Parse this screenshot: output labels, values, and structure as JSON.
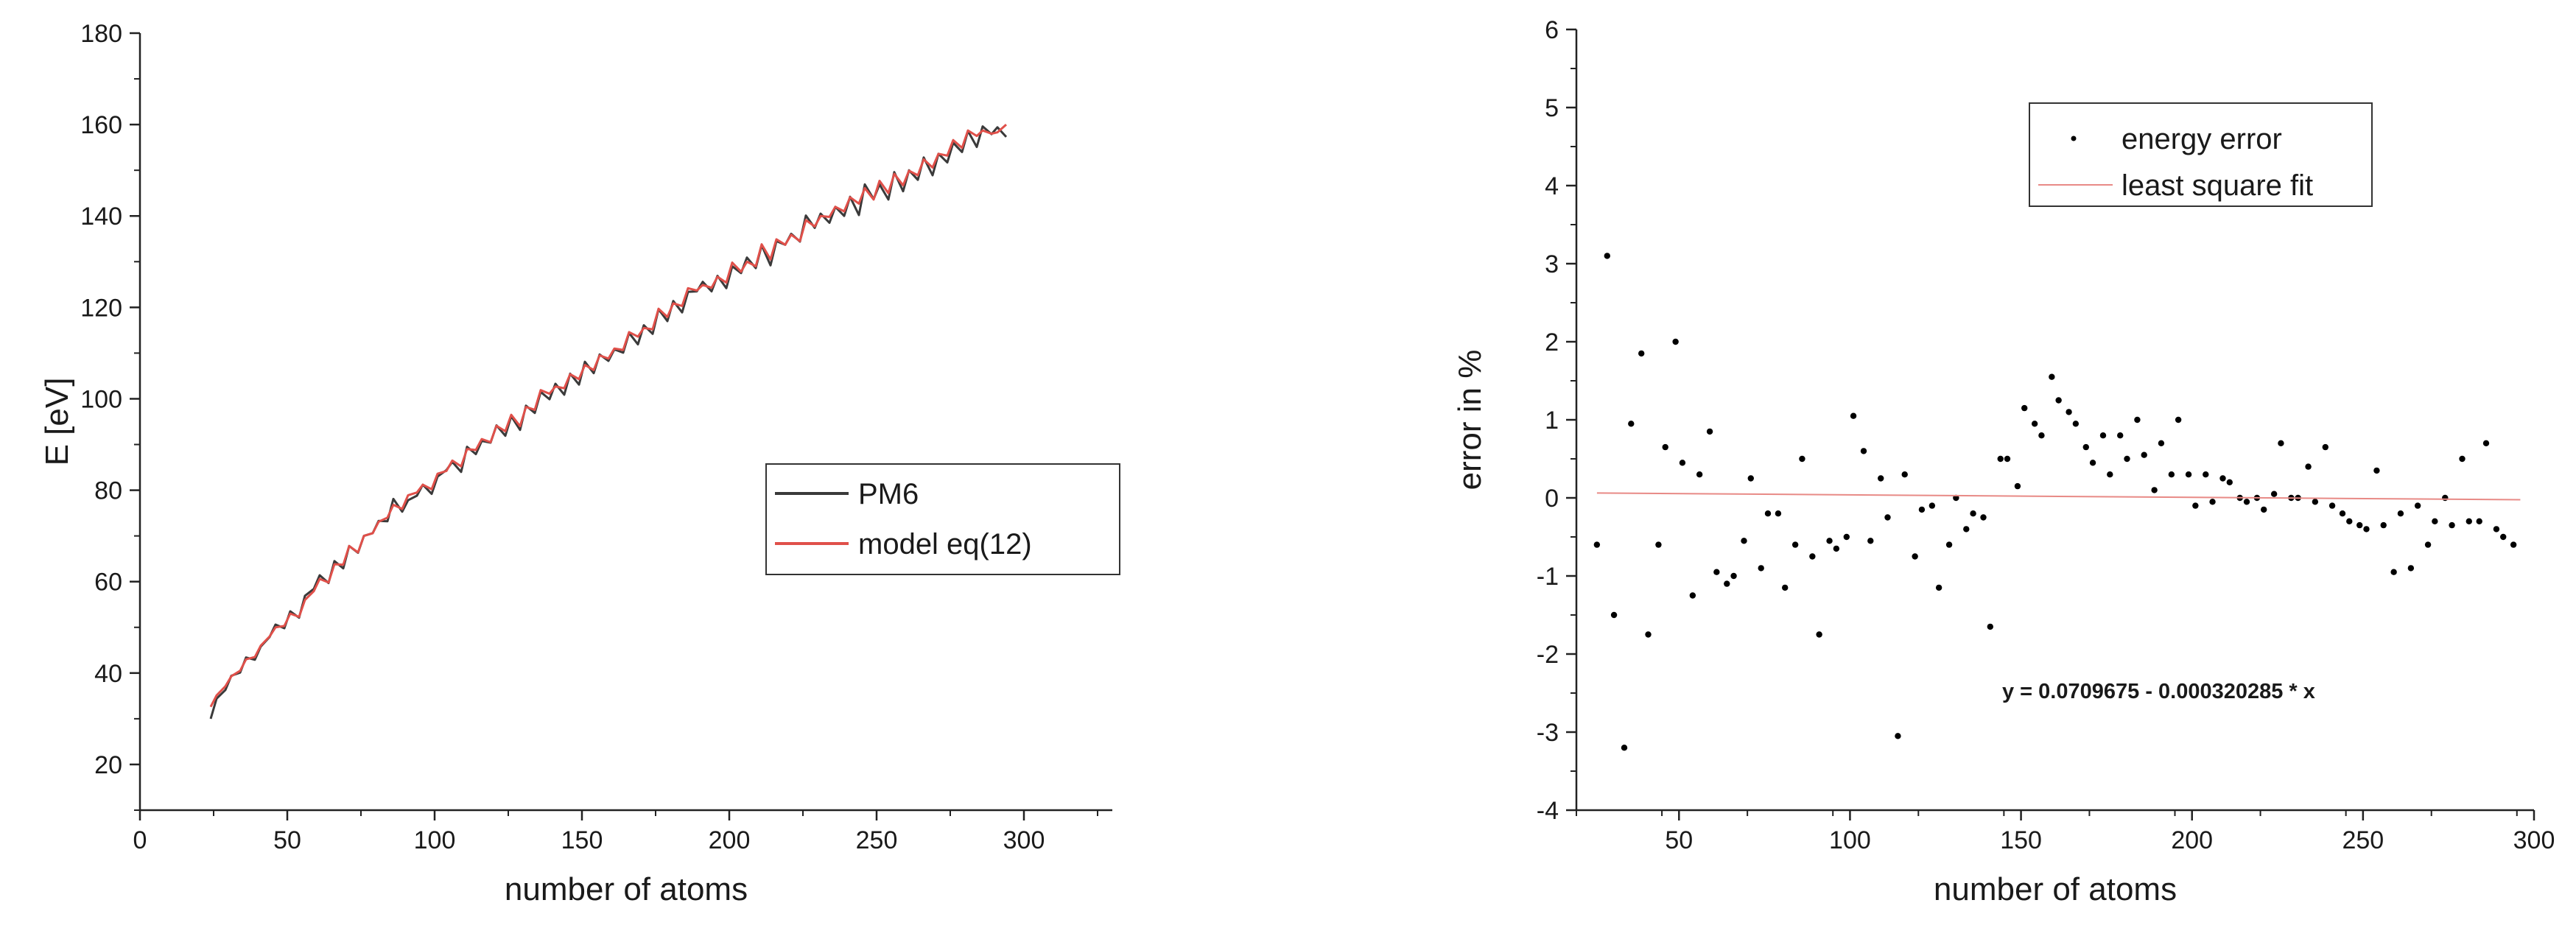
{
  "chart_data": [
    {
      "type": "line",
      "title": "",
      "xlabel": "number of atoms",
      "ylabel": "E [eV]",
      "xlim": [
        0,
        330
      ],
      "ylim": [
        10,
        180
      ],
      "xticks": [
        0,
        50,
        100,
        150,
        200,
        250,
        300
      ],
      "yticks": [
        20,
        40,
        60,
        80,
        100,
        120,
        140,
        160,
        180
      ],
      "legend_position": "center-right",
      "series": [
        {
          "name": "PM6",
          "color": "#3a3a3a",
          "x": [
            24,
            26,
            29,
            31,
            34,
            36,
            39,
            41,
            44,
            46,
            49,
            51,
            54,
            56,
            59,
            61,
            64,
            66,
            69,
            71,
            74,
            76,
            79,
            81,
            84,
            86,
            89,
            91,
            94,
            96,
            99,
            101,
            104,
            106,
            109,
            111,
            114,
            116,
            119,
            121,
            124,
            126,
            129,
            131,
            134,
            136,
            139,
            141,
            144,
            146,
            149,
            151,
            154,
            156,
            159,
            161,
            164,
            166,
            169,
            171,
            174,
            176,
            179,
            181,
            184,
            186,
            189,
            191,
            194,
            196,
            199,
            201,
            204,
            206,
            209,
            211,
            214,
            216,
            219,
            221,
            224,
            226,
            229,
            231,
            234,
            236,
            239,
            241,
            244,
            246,
            249,
            251,
            254,
            256,
            259,
            261,
            264,
            266,
            269,
            271,
            274,
            276,
            279,
            281,
            284,
            286,
            289,
            291,
            294
          ],
          "values": [
            30,
            34.4,
            36.3,
            39.4,
            40.1,
            43.4,
            42.9,
            45.8,
            47.9,
            50.6,
            49.8,
            53.5,
            52.1,
            56.9,
            58.4,
            61.4,
            59.7,
            64.5,
            62.9,
            67.8,
            66.3,
            70.0,
            70.6,
            73.3,
            73.2,
            78.1,
            75.3,
            77.8,
            78.8,
            81.2,
            79.2,
            83.0,
            84.4,
            86.2,
            84.0,
            89.5,
            87.9,
            90.8,
            90.4,
            94.2,
            91.9,
            96.2,
            93.2,
            98.5,
            96.9,
            101.5,
            99.9,
            103.3,
            100.9,
            105.5,
            103.1,
            108.1,
            105.6,
            109.7,
            108.3,
            110.8,
            110.1,
            114.4,
            111.9,
            116.1,
            114.2,
            119.6,
            117.0,
            121.4,
            118.9,
            123.4,
            123.5,
            125.6,
            123.5,
            126.9,
            124.2,
            129.0,
            127.5,
            130.9,
            128.6,
            133.6,
            129.2,
            134.5,
            133.7,
            136.1,
            134.4,
            140.1,
            137.4,
            140.5,
            138.5,
            142.0,
            140.0,
            144.2,
            140.2,
            146.9,
            143.7,
            146.9,
            143.6,
            149.6,
            145.4,
            150.0,
            147.9,
            152.8,
            148.9,
            153.6,
            151.7,
            156.0,
            154.0,
            158.6,
            155.1,
            159.6,
            157.9,
            159.4,
            157.3
          ]
        },
        {
          "name": "model eq(12)",
          "color": "#e0504a",
          "x": [
            24,
            26,
            29,
            31,
            34,
            36,
            39,
            41,
            44,
            46,
            49,
            51,
            54,
            56,
            59,
            61,
            64,
            66,
            69,
            71,
            74,
            76,
            79,
            81,
            84,
            86,
            89,
            91,
            94,
            96,
            99,
            101,
            104,
            106,
            109,
            111,
            114,
            116,
            119,
            121,
            124,
            126,
            129,
            131,
            134,
            136,
            139,
            141,
            144,
            146,
            149,
            151,
            154,
            156,
            159,
            161,
            164,
            166,
            169,
            171,
            174,
            176,
            179,
            181,
            184,
            186,
            189,
            191,
            194,
            196,
            199,
            201,
            204,
            206,
            209,
            211,
            214,
            216,
            219,
            221,
            224,
            226,
            229,
            231,
            234,
            236,
            239,
            241,
            244,
            246,
            249,
            251,
            254,
            256,
            259,
            261,
            264,
            266,
            269,
            271,
            274,
            276,
            279,
            281,
            284,
            286,
            289,
            291,
            294
          ],
          "values": [
            32.6,
            35.1,
            37.1,
            39.3,
            40.5,
            43.0,
            43.5,
            46.0,
            48.0,
            50.0,
            50.3,
            53.0,
            52.3,
            56.0,
            57.9,
            60.6,
            59.8,
            63.8,
            63.7,
            67.8,
            66.4,
            70.0,
            70.6,
            73.1,
            74.0,
            76.8,
            75.9,
            78.9,
            79.5,
            81.2,
            80.2,
            83.6,
            84.2,
            86.5,
            85.2,
            89.0,
            88.8,
            91.2,
            90.5,
            94.1,
            92.9,
            96.5,
            94.0,
            98.2,
            97.6,
            101.9,
            101.1,
            102.7,
            102.3,
            105.4,
            104.3,
            107.4,
            106.3,
            109.5,
            108.8,
            111.0,
            110.7,
            114.6,
            113.6,
            115.5,
            115.2,
            119.7,
            117.9,
            120.9,
            120.3,
            124.2,
            123.7,
            124.9,
            124.3,
            126.7,
            125.4,
            129.8,
            127.8,
            130.0,
            129.0,
            133.8,
            130.5,
            134.9,
            133.7,
            135.9,
            134.5,
            139.1,
            137.7,
            140.0,
            139.8,
            142.0,
            141.0,
            144.1,
            142.7,
            146.1,
            143.6,
            147.7,
            145.0,
            149.2,
            146.7,
            149.9,
            148.9,
            152.4,
            150.6,
            153.6,
            153.2,
            156.6,
            154.9,
            158.7,
            157.5,
            158.7,
            158.0,
            158.3,
            160.0
          ]
        }
      ]
    },
    {
      "type": "scatter",
      "title": "",
      "xlabel": "number of atoms",
      "ylabel": "error in %",
      "xlim": [
        20,
        300
      ],
      "ylim": [
        -4,
        6
      ],
      "xticks": [
        50,
        100,
        150,
        200,
        250,
        300
      ],
      "yticks": [
        -4,
        -3,
        -2,
        -1,
        0,
        1,
        2,
        3,
        4,
        5,
        6
      ],
      "legend_position": "top-center",
      "annotation": "y = 0.0709675 - 0.000320285 * x",
      "series": [
        {
          "name": "energy error",
          "color": "#000000",
          "x": [
            26,
            29,
            31,
            34,
            36,
            39,
            41,
            44,
            46,
            49,
            51,
            54,
            56,
            59,
            61,
            64,
            66,
            69,
            71,
            74,
            76,
            79,
            81,
            84,
            86,
            89,
            91,
            94,
            96,
            99,
            101,
            104,
            106,
            109,
            111,
            114,
            116,
            119,
            121,
            124,
            126,
            129,
            131,
            134,
            136,
            139,
            141,
            144,
            146,
            149,
            151,
            154,
            156,
            159,
            161,
            164,
            166,
            169,
            171,
            174,
            176,
            179,
            181,
            184,
            186,
            189,
            191,
            194,
            196,
            199,
            201,
            204,
            206,
            209,
            211,
            214,
            216,
            219,
            221,
            224,
            226,
            229,
            231,
            234,
            236,
            239,
            241,
            244,
            246,
            249,
            251,
            254,
            256,
            259,
            261,
            264,
            266,
            269,
            271,
            274,
            276,
            279,
            281,
            284,
            286,
            289,
            291,
            294
          ],
          "values": [
            -0.6,
            3.1,
            -1.5,
            -3.2,
            0.95,
            1.85,
            -1.75,
            -0.6,
            0.65,
            2.0,
            0.45,
            -1.25,
            0.3,
            0.85,
            -0.95,
            -1.1,
            -1.0,
            -0.55,
            0.25,
            -0.9,
            -0.2,
            -0.2,
            -1.15,
            -0.6,
            0.5,
            -0.75,
            -1.75,
            -0.55,
            -0.65,
            -0.5,
            1.05,
            0.6,
            -0.55,
            0.25,
            -0.25,
            -3.05,
            0.3,
            -0.75,
            -0.15,
            -0.1,
            -1.15,
            -0.6,
            0.0,
            -0.4,
            -0.2,
            -0.25,
            -1.65,
            0.5,
            0.5,
            0.15,
            1.15,
            0.95,
            0.8,
            1.55,
            1.25,
            1.1,
            0.95,
            0.65,
            0.45,
            0.8,
            0.3,
            0.8,
            0.5,
            1.0,
            0.55,
            0.1,
            0.7,
            0.3,
            1.0,
            0.3,
            -0.1,
            0.3,
            -0.05,
            0.25,
            0.2,
            0.0,
            -0.05,
            0.0,
            -0.15,
            0.05,
            0.7,
            0.0,
            0.0,
            0.4,
            -0.05,
            0.65,
            -0.1,
            -0.2,
            -0.3,
            -0.35,
            -0.4,
            0.35,
            -0.35,
            -0.95,
            -0.2,
            -0.9,
            -0.1,
            -0.6,
            -0.3,
            0.0,
            -0.35,
            0.5,
            -0.3,
            -0.3,
            0.7,
            -0.4,
            -0.5,
            -0.6
          ]
        },
        {
          "name": "least square fit",
          "color": "#e88a86",
          "x": [
            26,
            296
          ],
          "values": [
            0.0626,
            -0.0238
          ]
        }
      ]
    }
  ]
}
